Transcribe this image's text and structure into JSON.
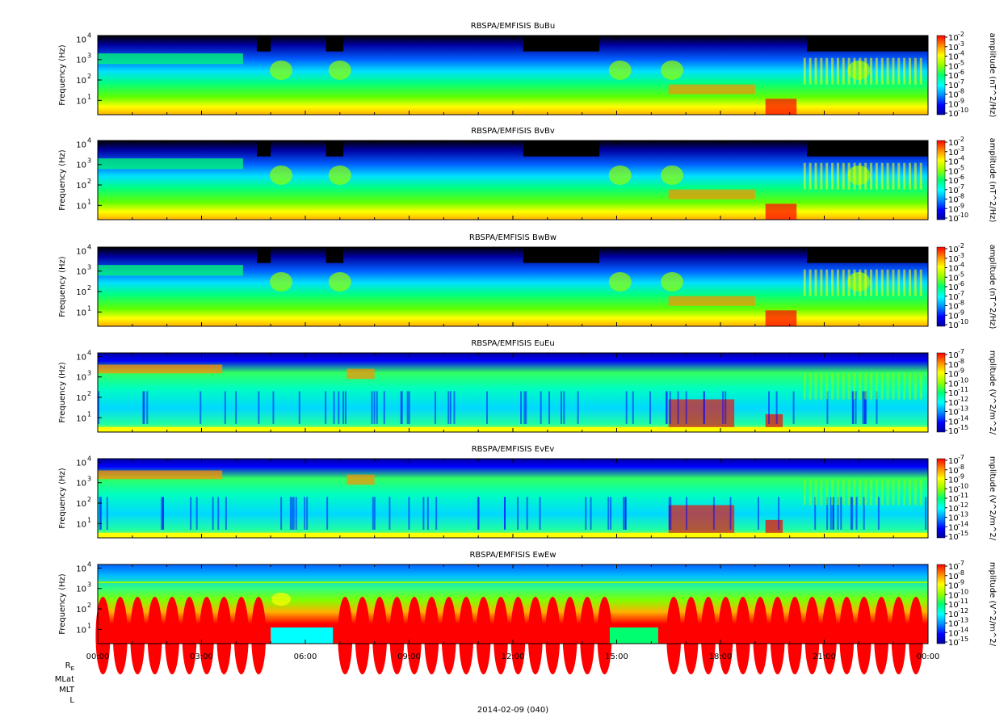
{
  "figure": {
    "date_label": "2014-02-09 (040)",
    "ephemeris_labels": [
      "R",
      "MLat",
      "MLT",
      "L"
    ],
    "ephemeris_re_subscript": "E",
    "colors": {
      "black": "#000000",
      "navy": "#0000a0",
      "blue": "#0000ff",
      "azure": "#0090ff",
      "cyan": "#00ffff",
      "green": "#00ff70",
      "lime": "#90ff00",
      "yellow": "#ffff00",
      "orange": "#ff9000",
      "red": "#ff0000"
    }
  },
  "chart_data": [
    {
      "type": "heatmap",
      "title": "RBSPA/EMFISIS  BuBu",
      "ylabel": "Frequency (Hz)",
      "yscale": "log",
      "ylim": [
        2,
        15000
      ],
      "yticks": [
        "10",
        "10",
        "10",
        "10"
      ],
      "ytick_exponents": [
        "1",
        "2",
        "3",
        "4"
      ],
      "colorbar_label": "amplitude (nT^2/Hz)",
      "colorbar_ticks": [
        "10",
        "10",
        "10",
        "10",
        "10",
        "10",
        "10",
        "10",
        "10"
      ],
      "colorbar_exponents": [
        "-2",
        "-3",
        "-4",
        "-5",
        "-6",
        "-7",
        "-8",
        "-9",
        "-10"
      ],
      "xlim_hours": [
        0,
        24
      ]
    },
    {
      "type": "heatmap",
      "title": "RBSPA/EMFISIS  BvBv",
      "ylabel": "Frequency (Hz)",
      "yscale": "log",
      "ylim": [
        2,
        15000
      ],
      "yticks": [
        "10",
        "10",
        "10",
        "10"
      ],
      "ytick_exponents": [
        "1",
        "2",
        "3",
        "4"
      ],
      "colorbar_label": "amplitude (nT^2/Hz)",
      "colorbar_ticks": [
        "10",
        "10",
        "10",
        "10",
        "10",
        "10",
        "10",
        "10",
        "10"
      ],
      "colorbar_exponents": [
        "-2",
        "-3",
        "-4",
        "-5",
        "-6",
        "-7",
        "-8",
        "-9",
        "-10"
      ],
      "xlim_hours": [
        0,
        24
      ]
    },
    {
      "type": "heatmap",
      "title": "RBSPA/EMFISIS  BwBw",
      "ylabel": "Frequency (Hz)",
      "yscale": "log",
      "ylim": [
        2,
        15000
      ],
      "yticks": [
        "10",
        "10",
        "10",
        "10"
      ],
      "ytick_exponents": [
        "1",
        "2",
        "3",
        "4"
      ],
      "colorbar_label": "amplitude (nT^2/Hz)",
      "colorbar_ticks": [
        "10",
        "10",
        "10",
        "10",
        "10",
        "10",
        "10",
        "10",
        "10"
      ],
      "colorbar_exponents": [
        "-2",
        "-3",
        "-4",
        "-5",
        "-6",
        "-7",
        "-8",
        "-9",
        "-10"
      ],
      "xlim_hours": [
        0,
        24
      ]
    },
    {
      "type": "heatmap",
      "title": "RBSPA/EMFISIS  EuEu",
      "ylabel": "Frequency (Hz)",
      "yscale": "log",
      "ylim": [
        2,
        15000
      ],
      "yticks": [
        "10",
        "10",
        "10",
        "10"
      ],
      "ytick_exponents": [
        "1",
        "2",
        "3",
        "4"
      ],
      "colorbar_label": "mplitude (V^2/m^2/",
      "colorbar_ticks": [
        "10",
        "10",
        "10",
        "10",
        "10",
        "10",
        "10",
        "10",
        "10"
      ],
      "colorbar_exponents": [
        "-7",
        "-8",
        "-9",
        "-10",
        "-11",
        "-12",
        "-13",
        "-14",
        "-15"
      ],
      "xlim_hours": [
        0,
        24
      ]
    },
    {
      "type": "heatmap",
      "title": "RBSPA/EMFISIS  EvEv",
      "ylabel": "Frequency (Hz)",
      "yscale": "log",
      "ylim": [
        2,
        15000
      ],
      "yticks": [
        "10",
        "10",
        "10",
        "10"
      ],
      "ytick_exponents": [
        "1",
        "2",
        "3",
        "4"
      ],
      "colorbar_label": "mplitude (V^2/m^2/",
      "colorbar_ticks": [
        "10",
        "10",
        "10",
        "10",
        "10",
        "10",
        "10",
        "10",
        "10"
      ],
      "colorbar_exponents": [
        "-7",
        "-8",
        "-9",
        "-10",
        "-11",
        "-12",
        "-13",
        "-14",
        "-15"
      ],
      "xlim_hours": [
        0,
        24
      ]
    },
    {
      "type": "heatmap",
      "title": "RBSPA/EMFISIS  EwEw",
      "ylabel": "Frequency (Hz)",
      "yscale": "log",
      "ylim": [
        2,
        15000
      ],
      "yticks": [
        "10",
        "10",
        "10",
        "10"
      ],
      "ytick_exponents": [
        "1",
        "2",
        "3",
        "4"
      ],
      "colorbar_label": "mplitude (V^2/m^2/",
      "colorbar_ticks": [
        "10",
        "10",
        "10",
        "10",
        "10",
        "10",
        "10",
        "10",
        "10"
      ],
      "colorbar_exponents": [
        "-7",
        "-8",
        "-9",
        "-10",
        "-11",
        "-12",
        "-13",
        "-14",
        "-15"
      ],
      "xlim_hours": [
        0,
        24
      ],
      "xticks": [
        "00:00",
        "03:00",
        "06:00",
        "09:00",
        "12:00",
        "15:00",
        "18:00",
        "21:00",
        "00:00"
      ]
    }
  ]
}
